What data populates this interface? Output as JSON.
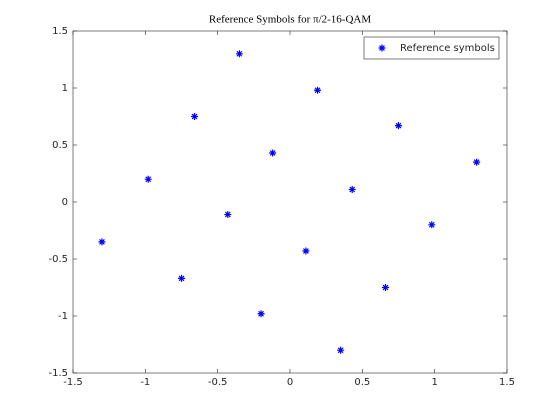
{
  "chart_data": {
    "type": "scatter",
    "title": "Reference Symbols for π/2-16-QAM",
    "series": [
      {
        "name": "Reference symbols",
        "color": "#0000ff",
        "marker": "asterisk",
        "x": [
          -0.35,
          0.19,
          -0.66,
          0.75,
          -0.12,
          1.29,
          -0.98,
          0.43,
          -0.43,
          0.98,
          -1.3,
          0.11,
          -0.75,
          0.66,
          -0.2,
          0.35
        ],
        "values": [
          1.3,
          0.98,
          0.75,
          0.67,
          0.43,
          0.35,
          0.2,
          0.11,
          -0.11,
          -0.2,
          -0.35,
          -0.43,
          -0.67,
          -0.75,
          -0.98,
          -1.3
        ]
      }
    ],
    "xlim": [
      -1.5,
      1.5
    ],
    "xticks": [
      -1.5,
      -1,
      -0.5,
      0,
      0.5,
      1,
      1.5
    ],
    "ylim": [
      -1.5,
      1.5
    ],
    "yticks": [
      -1.5,
      -1,
      -0.5,
      0,
      0.5,
      1,
      1.5
    ],
    "grid": false,
    "legend": "northeast"
  }
}
